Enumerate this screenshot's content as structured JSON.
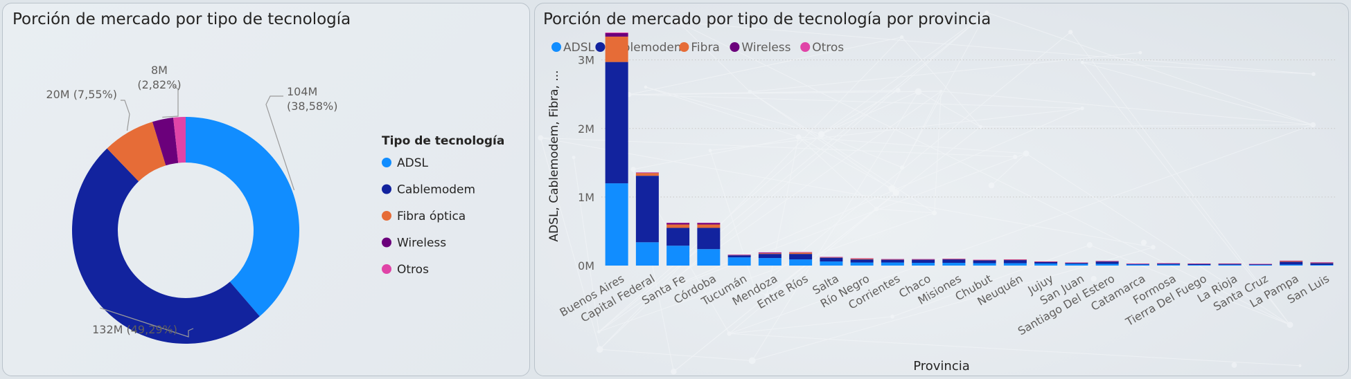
{
  "charts": {
    "left": {
      "title": "Porción de mercado por tipo de tecnología"
    },
    "right": {
      "title": "Porción de mercado por tipo de tecnología por provincia"
    }
  },
  "colors": {
    "adsl": "#118dff",
    "cablemodem": "#12239e",
    "fibra": "#e66c37",
    "wireless": "#6b007b",
    "otros": "#e044a7"
  },
  "chart_data": [
    {
      "type": "pie",
      "title": "Porción de mercado por tipo de tecnología",
      "legend_title": "Tipo de tecnología",
      "legend_position": "right",
      "donut": true,
      "slices": [
        {
          "name": "ADSL",
          "value": 104,
          "label": "104M",
          "pct_label": "(38,58%)"
        },
        {
          "name": "Cablemodem",
          "value": 132,
          "label": "132M (49,29%)",
          "pct_label": ""
        },
        {
          "name": "Fibra óptica",
          "value": 20,
          "label": "20M (7,55%)",
          "pct_label": ""
        },
        {
          "name": "Wireless",
          "value": 8,
          "label": "8M",
          "pct_label": "(2,82%)"
        },
        {
          "name": "Otros",
          "value": 4.7,
          "label": "",
          "pct_label": ""
        }
      ]
    },
    {
      "type": "bar",
      "stacked": true,
      "title": "Porción de mercado por tipo de tecnología por provincia",
      "xlabel": "Provincia",
      "ylabel": "ADSL, Cablemodem, Fibra, ...",
      "ylim": [
        0,
        3400000
      ],
      "yticks": [
        0,
        1000000,
        2000000,
        3000000
      ],
      "ytick_labels": [
        "0M",
        "1M",
        "2M",
        "3M"
      ],
      "legend_position": "top-left",
      "legend": [
        "ADSL",
        "Cablemodem",
        "Fibra",
        "Wireless",
        "Otros"
      ],
      "categories": [
        "Buenos Aires",
        "Capital Federal",
        "Santa Fe",
        "Córdoba",
        "Tucumán",
        "Mendoza",
        "Entre Ríos",
        "Salta",
        "Río Negro",
        "Corrientes",
        "Chaco",
        "Misiones",
        "Chubut",
        "Neuquén",
        "Jujuy",
        "San Juan",
        "Santiago Del Estero",
        "Catamarca",
        "Formosa",
        "Tierra Del Fuego",
        "La Rioja",
        "Santa Cruz",
        "La Pampa",
        "San Luis"
      ],
      "series": [
        {
          "name": "ADSL",
          "values": [
            1200000,
            340000,
            290000,
            240000,
            120000,
            110000,
            90000,
            60000,
            45000,
            45000,
            40000,
            40000,
            35000,
            35000,
            30000,
            25000,
            25000,
            15000,
            15000,
            10000,
            12000,
            10000,
            15000,
            10000
          ]
        },
        {
          "name": "Cablemodem",
          "values": [
            1770000,
            970000,
            260000,
            310000,
            30000,
            60000,
            80000,
            55000,
            45000,
            40000,
            45000,
            50000,
            40000,
            45000,
            25000,
            15000,
            35000,
            10000,
            15000,
            15000,
            15000,
            10000,
            40000,
            25000
          ]
        },
        {
          "name": "Fibra",
          "values": [
            370000,
            40000,
            50000,
            50000,
            5000,
            10000,
            20000,
            5000,
            10000,
            5000,
            5000,
            5000,
            5000,
            5000,
            2000,
            2000,
            3000,
            1000,
            2000,
            3000,
            1000,
            2000,
            10000,
            5000
          ]
        },
        {
          "name": "Wireless",
          "values": [
            50000,
            5000,
            20000,
            20000,
            3000,
            10000,
            5000,
            5000,
            5000,
            4000,
            3000,
            4000,
            3000,
            4000,
            2000,
            2000,
            3000,
            1000,
            1000,
            1000,
            2000,
            1000,
            5000,
            5000
          ]
        },
        {
          "name": "Otros",
          "values": [
            10000,
            5000,
            5000,
            5000,
            1000,
            3000,
            2000,
            2000,
            2000,
            1000,
            1000,
            1000,
            2000,
            2000,
            1000,
            1000,
            1000,
            1000,
            1000,
            1000,
            1000,
            1000,
            2000,
            3000
          ]
        }
      ]
    }
  ]
}
